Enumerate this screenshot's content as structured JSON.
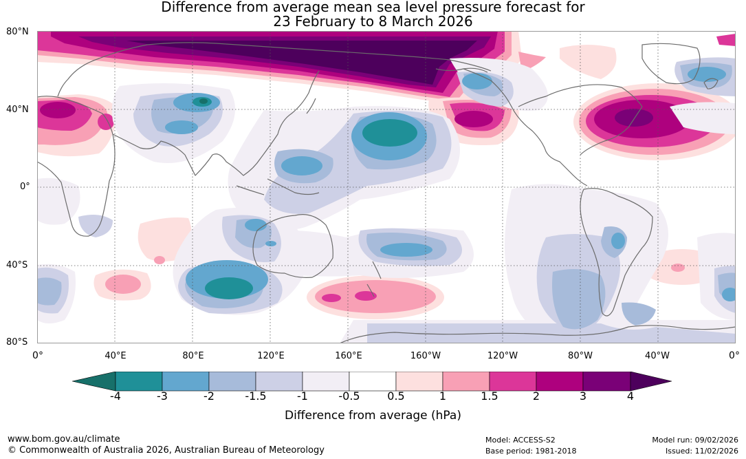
{
  "title": {
    "line1": "Difference from average mean sea level pressure forecast for",
    "line2": "23 February to 8 March 2026"
  },
  "map": {
    "latitude_labels": [
      "80°N",
      "40°N",
      "0°",
      "40°S",
      "80°S"
    ],
    "longitude_labels": [
      "0°",
      "40°E",
      "80°E",
      "120°E",
      "160°E",
      "160°W",
      "120°W",
      "80°W",
      "40°W",
      "0°"
    ],
    "legend_levels_hpa": [
      -4,
      -3,
      -2,
      -1.5,
      -1,
      -0.5,
      0.5,
      1,
      1.5,
      2,
      3,
      4
    ],
    "anomaly_regions": [
      {
        "name": "Northern Eurasia",
        "center_lon": 110,
        "center_lat": 70,
        "peak_hpa": "above 4"
      },
      {
        "name": "North Atlantic",
        "center_lon": -50,
        "center_lat": 36,
        "peak_hpa": "3 to 4"
      },
      {
        "name": "North Africa / Mediterranean",
        "center_lon": 10,
        "center_lat": 37,
        "peak_hpa": "2 to 3"
      },
      {
        "name": "Northeast Pacific",
        "center_lon": -135,
        "center_lat": 35,
        "peak_hpa": "2 to 3"
      },
      {
        "name": "Southern Ocean south of New Zealand",
        "center_lon": 170,
        "center_lat": -53,
        "peak_hpa": "1.5 to 2"
      },
      {
        "name": "South Atlantic",
        "center_lon": -35,
        "center_lat": -38,
        "peak_hpa": "1 to 1.5"
      },
      {
        "name": "Southern Indian Ocean",
        "center_lon": 45,
        "center_lat": -48,
        "peak_hpa": "1 to 1.5"
      },
      {
        "name": "Central North Pacific",
        "center_lon": -178,
        "center_lat": 28,
        "peak_hpa": "-4 to -3"
      },
      {
        "name": "Southern Ocean south-west of Australia",
        "center_lon": 100,
        "center_lat": -50,
        "peak_hpa": "-4 to -3"
      },
      {
        "name": "Tibetan Plateau",
        "center_lon": 85,
        "center_lat": 35,
        "peak_hpa": "-4 to -3"
      },
      {
        "name": "Philippine Sea",
        "center_lon": 137,
        "center_lat": 10,
        "peak_hpa": "-3 to -2"
      },
      {
        "name": "Gulf of Alaska",
        "center_lon": -140,
        "center_lat": 52,
        "peak_hpa": "-3 to -2"
      },
      {
        "name": "South Pacific east of New Zealand",
        "center_lon": -175,
        "center_lat": -31,
        "peak_hpa": "-3 to -2"
      },
      {
        "name": "North Atlantic subpolar",
        "center_lon": -20,
        "center_lat": 57,
        "peak_hpa": "-3 to -2"
      },
      {
        "name": "Northern Australia",
        "center_lon": 117,
        "center_lat": -20,
        "peak_hpa": "-3 to -2"
      }
    ]
  },
  "colorbar": {
    "colors": [
      "#17706a",
      "#1f9098",
      "#63a7cf",
      "#a7bbda",
      "#cdd0e6",
      "#f2eef5",
      "#ffffff",
      "#fde0df",
      "#f8a0b5",
      "#dc3699",
      "#ae017e",
      "#7a0177",
      "#4d005c"
    ],
    "tick_labels": [
      "-4",
      "-3",
      "-2",
      "-1.5",
      "-1",
      "-0.5",
      "0.5",
      "1",
      "1.5",
      "2",
      "3",
      "4"
    ],
    "label": "Difference from average (hPa)"
  },
  "footer": {
    "website": "www.bom.gov.au/climate",
    "copyright": "© Commonwealth of Australia 2026, Australian Bureau of Meteorology",
    "model": "Model: ACCESS-S2",
    "base_period": "Base period: 1981-2018",
    "model_run": "Model run: 09/02/2026",
    "issued": "Issued: 11/02/2026"
  }
}
